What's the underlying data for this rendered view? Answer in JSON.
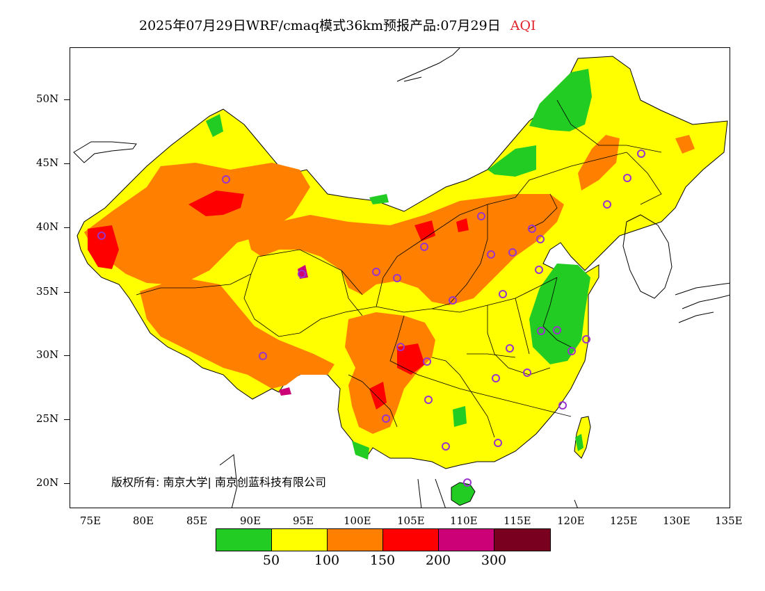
{
  "title": {
    "main": "2025年07月29日WRF/cmaq模式36km预报产品:07月29日",
    "variable": "AQI"
  },
  "map": {
    "lat_labels": [
      "50N",
      "45N",
      "40N",
      "35N",
      "30N",
      "25N",
      "20N"
    ],
    "lon_labels": [
      "75E",
      "80E",
      "85E",
      "90E",
      "95E",
      "100E",
      "105E",
      "110E",
      "115E",
      "120E",
      "125E",
      "130E",
      "135E"
    ],
    "copyright": "版权所有: 南京大学| 南京创蓝科技有限公司",
    "category_colors": {
      "green": "#22cc22",
      "yellow": "#ffff00",
      "orange": "#ff8000",
      "red": "#ff0000",
      "magenta": "#cc0077",
      "maroon": "#7a0020"
    },
    "station_marker_color": "#9933cc"
  },
  "legend": {
    "colors": [
      "#22cc22",
      "#ffff00",
      "#ff8000",
      "#ff0000",
      "#cc0077",
      "#7a0020"
    ],
    "labels": [
      "50",
      "100",
      "150",
      "200",
      "300"
    ]
  }
}
